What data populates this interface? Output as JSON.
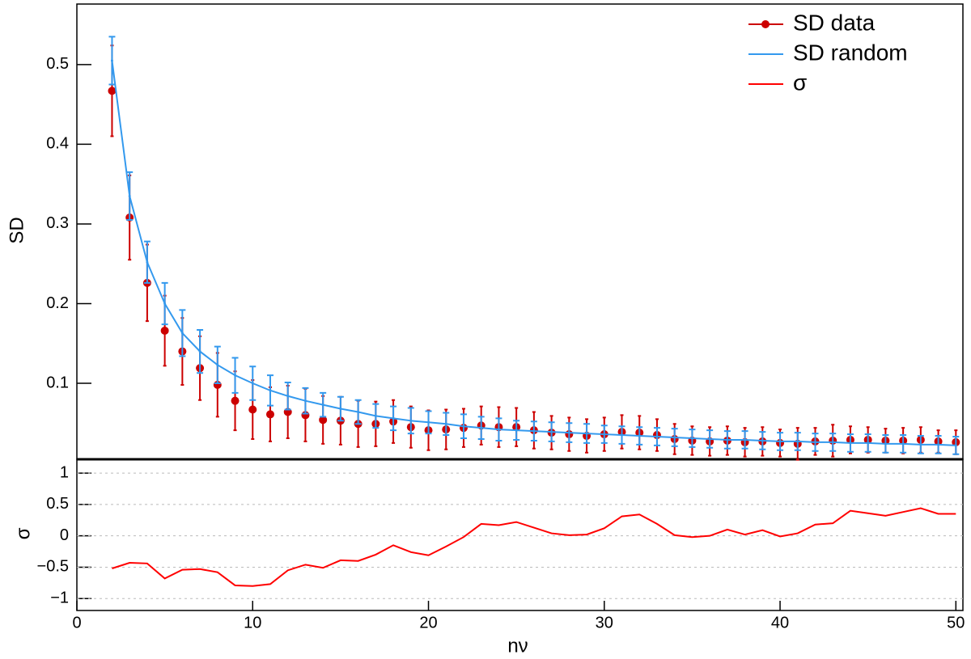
{
  "chart_data": [
    {
      "type": "errorbar",
      "y_label": "SD",
      "x": [
        2,
        3,
        4,
        5,
        6,
        7,
        8,
        9,
        10,
        11,
        12,
        13,
        14,
        15,
        16,
        17,
        18,
        19,
        20,
        21,
        22,
        23,
        24,
        25,
        26,
        27,
        28,
        29,
        30,
        31,
        32,
        33,
        34,
        35,
        36,
        37,
        38,
        39,
        40,
        41,
        42,
        43,
        44,
        45,
        46,
        47,
        48,
        49,
        50
      ],
      "xlim": [
        0,
        50.4
      ],
      "ylim": [
        0.0046,
        0.576
      ],
      "yticks": [
        0.1,
        0.2,
        0.3,
        0.4,
        0.5
      ],
      "legend": "top-right",
      "series": [
        {
          "name": "SD data",
          "color": "#cc0000",
          "style": "markers",
          "values": [
            0.467,
            0.308,
            0.226,
            0.166,
            0.14,
            0.119,
            0.098,
            0.078,
            0.067,
            0.061,
            0.064,
            0.06,
            0.054,
            0.053,
            0.049,
            0.049,
            0.052,
            0.045,
            0.041,
            0.042,
            0.044,
            0.047,
            0.045,
            0.045,
            0.041,
            0.038,
            0.036,
            0.034,
            0.036,
            0.039,
            0.038,
            0.035,
            0.03,
            0.028,
            0.027,
            0.028,
            0.026,
            0.027,
            0.025,
            0.024,
            0.027,
            0.028,
            0.029,
            0.029,
            0.028,
            0.028,
            0.029,
            0.027,
            0.026
          ],
          "errors": [
            0.057,
            0.053,
            0.048,
            0.044,
            0.042,
            0.04,
            0.04,
            0.037,
            0.037,
            0.034,
            0.033,
            0.033,
            0.03,
            0.03,
            0.029,
            0.028,
            0.027,
            0.026,
            0.025,
            0.025,
            0.024,
            0.024,
            0.025,
            0.024,
            0.023,
            0.021,
            0.021,
            0.021,
            0.021,
            0.021,
            0.021,
            0.02,
            0.019,
            0.018,
            0.018,
            0.018,
            0.018,
            0.018,
            0.017,
            0.02,
            0.017,
            0.02,
            0.017,
            0.016,
            0.015,
            0.016,
            0.016,
            0.014,
            0.015
          ]
        },
        {
          "name": "SD random",
          "color": "#3399ee",
          "style": "line",
          "values": [
            0.505,
            0.335,
            0.252,
            0.2,
            0.163,
            0.14,
            0.123,
            0.11,
            0.1,
            0.091,
            0.084,
            0.078,
            0.073,
            0.068,
            0.064,
            0.059,
            0.056,
            0.053,
            0.051,
            0.049,
            0.046,
            0.044,
            0.042,
            0.041,
            0.04,
            0.039,
            0.038,
            0.037,
            0.036,
            0.035,
            0.034,
            0.033,
            0.032,
            0.031,
            0.03,
            0.029,
            0.029,
            0.028,
            0.027,
            0.027,
            0.026,
            0.026,
            0.025,
            0.025,
            0.024,
            0.024,
            0.023,
            0.023,
            0.022
          ],
          "errors": [
            0.03,
            0.03,
            0.026,
            0.026,
            0.029,
            0.027,
            0.023,
            0.022,
            0.021,
            0.019,
            0.017,
            0.016,
            0.015,
            0.015,
            0.015,
            0.015,
            0.015,
            0.016,
            0.014,
            0.014,
            0.015,
            0.014,
            0.014,
            0.012,
            0.012,
            0.012,
            0.012,
            0.012,
            0.011,
            0.011,
            0.011,
            0.011,
            0.011,
            0.011,
            0.011,
            0.011,
            0.011,
            0.011,
            0.011,
            0.011,
            0.011,
            0.011,
            0.011,
            0.011,
            0.011,
            0.011,
            0.011,
            0.011,
            0.011
          ]
        }
      ]
    },
    {
      "type": "line",
      "y_label": "σ",
      "x_label": "nν",
      "x": [
        2,
        3,
        4,
        5,
        6,
        7,
        8,
        9,
        10,
        11,
        12,
        13,
        14,
        15,
        16,
        17,
        18,
        19,
        20,
        21,
        22,
        23,
        24,
        25,
        26,
        27,
        28,
        29,
        30,
        31,
        32,
        33,
        34,
        35,
        36,
        37,
        38,
        39,
        40,
        41,
        42,
        43,
        44,
        45,
        46,
        47,
        48,
        49,
        50
      ],
      "xlim": [
        0,
        50.4
      ],
      "xticks": [
        0,
        10,
        20,
        30,
        40,
        50
      ],
      "ylim": [
        -1.19,
        1.22
      ],
      "yticks": [
        {
          "value": -1,
          "label": "−1"
        },
        {
          "value": -0.5,
          "label": "−0.5"
        },
        0,
        0.5,
        1
      ],
      "grid": true,
      "series": [
        {
          "name": "σ",
          "color": "#ff0000",
          "values": [
            -0.52,
            -0.43,
            -0.44,
            -0.68,
            -0.54,
            -0.53,
            -0.58,
            -0.79,
            -0.8,
            -0.77,
            -0.55,
            -0.46,
            -0.51,
            -0.39,
            -0.4,
            -0.3,
            -0.15,
            -0.26,
            -0.31,
            -0.17,
            -0.02,
            0.19,
            0.17,
            0.22,
            0.13,
            0.04,
            0.01,
            0.02,
            0.12,
            0.31,
            0.34,
            0.19,
            0.01,
            -0.02,
            0.0,
            0.1,
            0.02,
            0.09,
            -0.01,
            0.04,
            0.18,
            0.2,
            0.4,
            0.36,
            0.32,
            0.38,
            0.44,
            0.35,
            0.35
          ]
        }
      ]
    }
  ]
}
